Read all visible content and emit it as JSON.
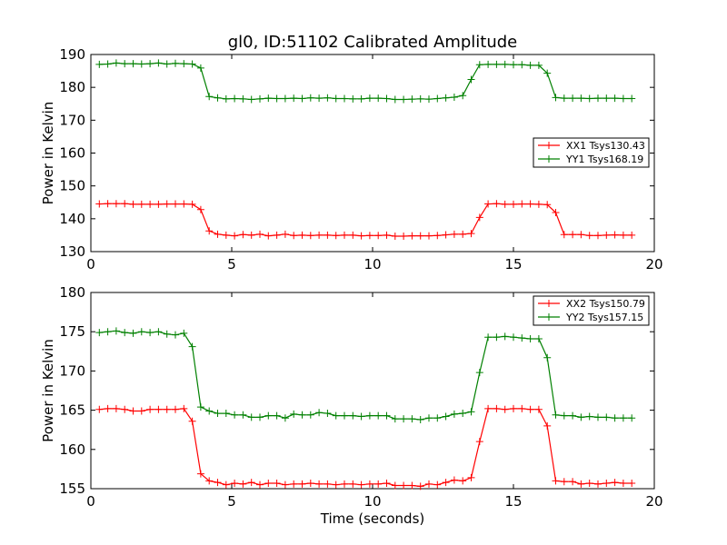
{
  "title": "gl0, ID:51102 Calibrated Amplitude",
  "chart_data": [
    {
      "type": "line",
      "title": "gl0, ID:51102 Calibrated Amplitude",
      "xlabel": "",
      "ylabel": "Power in Kelvin",
      "xlim": [
        0,
        20
      ],
      "ylim": [
        130,
        190
      ],
      "xticks": [
        0,
        5,
        10,
        15,
        20
      ],
      "yticks": [
        130,
        140,
        150,
        160,
        170,
        180,
        190
      ],
      "xtick_labels": [
        "0",
        "5",
        "10",
        "15",
        "20"
      ],
      "ytick_labels": [
        "130",
        "140",
        "150",
        "160",
        "170",
        "180",
        "190"
      ],
      "grid": false,
      "legend_position": "center-right",
      "x": [
        0.3,
        0.6,
        0.9,
        1.2,
        1.5,
        1.8,
        2.1,
        2.4,
        2.7,
        3.0,
        3.3,
        3.6,
        3.9,
        4.2,
        4.5,
        4.8,
        5.1,
        5.4,
        5.7,
        6.0,
        6.3,
        6.6,
        6.9,
        7.2,
        7.5,
        7.8,
        8.1,
        8.4,
        8.7,
        9.0,
        9.3,
        9.6,
        9.9,
        10.2,
        10.5,
        10.8,
        11.1,
        11.4,
        11.7,
        12.0,
        12.3,
        12.6,
        12.9,
        13.2,
        13.5,
        13.8,
        14.1,
        14.4,
        14.7,
        15.0,
        15.3,
        15.6,
        15.9,
        16.2,
        16.5,
        16.8,
        17.1,
        17.4,
        17.7,
        18.0,
        18.3,
        18.6,
        18.9,
        19.2
      ],
      "series": [
        {
          "name": "XX1 Tsys130.43",
          "color": "#ff0000",
          "values": [
            144.5,
            144.6,
            144.6,
            144.6,
            144.4,
            144.4,
            144.4,
            144.4,
            144.5,
            144.5,
            144.5,
            144.4,
            142.8,
            136.3,
            135.3,
            135.0,
            134.8,
            135.2,
            135.0,
            135.3,
            134.8,
            135.0,
            135.3,
            134.9,
            135.0,
            134.9,
            135.0,
            135.0,
            134.9,
            135.0,
            135.0,
            134.8,
            134.9,
            134.9,
            135.0,
            134.7,
            134.7,
            134.8,
            134.8,
            134.8,
            134.9,
            135.1,
            135.3,
            135.3,
            135.5,
            140.4,
            144.5,
            144.6,
            144.4,
            144.4,
            144.5,
            144.5,
            144.4,
            144.3,
            141.9,
            135.2,
            135.2,
            135.2,
            134.9,
            134.9,
            135.0,
            135.1,
            135.0,
            135.0
          ]
        },
        {
          "name": "YY1 Tsys168.19",
          "color": "#008000",
          "values": [
            187.0,
            187.1,
            187.4,
            187.2,
            187.2,
            187.1,
            187.2,
            187.4,
            187.1,
            187.3,
            187.2,
            187.1,
            185.9,
            177.2,
            176.8,
            176.5,
            176.6,
            176.5,
            176.3,
            176.5,
            176.7,
            176.6,
            176.6,
            176.7,
            176.6,
            176.8,
            176.7,
            176.8,
            176.6,
            176.6,
            176.5,
            176.5,
            176.7,
            176.7,
            176.6,
            176.3,
            176.3,
            176.4,
            176.5,
            176.4,
            176.6,
            176.8,
            177.0,
            177.5,
            182.4,
            186.9,
            187.0,
            187.0,
            187.0,
            186.9,
            186.9,
            186.7,
            186.7,
            184.3,
            176.9,
            176.7,
            176.7,
            176.7,
            176.6,
            176.7,
            176.7,
            176.7,
            176.6,
            176.6
          ]
        }
      ]
    },
    {
      "type": "line",
      "title": "",
      "xlabel": "Time (seconds)",
      "ylabel": "Power in Kelvin",
      "xlim": [
        0,
        20
      ],
      "ylim": [
        155,
        180
      ],
      "xticks": [
        0,
        5,
        10,
        15,
        20
      ],
      "yticks": [
        155,
        160,
        165,
        170,
        175,
        180
      ],
      "xtick_labels": [
        "0",
        "5",
        "10",
        "15",
        "20"
      ],
      "ytick_labels": [
        "155",
        "160",
        "165",
        "170",
        "175",
        "180"
      ],
      "grid": false,
      "legend_position": "top-right",
      "x": [
        0.3,
        0.6,
        0.9,
        1.2,
        1.5,
        1.8,
        2.1,
        2.4,
        2.7,
        3.0,
        3.3,
        3.6,
        3.9,
        4.2,
        4.5,
        4.8,
        5.1,
        5.4,
        5.7,
        6.0,
        6.3,
        6.6,
        6.9,
        7.2,
        7.5,
        7.8,
        8.1,
        8.4,
        8.7,
        9.0,
        9.3,
        9.6,
        9.9,
        10.2,
        10.5,
        10.8,
        11.1,
        11.4,
        11.7,
        12.0,
        12.3,
        12.6,
        12.9,
        13.2,
        13.5,
        13.8,
        14.1,
        14.4,
        14.7,
        15.0,
        15.3,
        15.6,
        15.9,
        16.2,
        16.5,
        16.8,
        17.1,
        17.4,
        17.7,
        18.0,
        18.3,
        18.6,
        18.9,
        19.2
      ],
      "series": [
        {
          "name": "XX2 Tsys150.79",
          "color": "#ff0000",
          "values": [
            165.1,
            165.2,
            165.2,
            165.1,
            164.9,
            164.9,
            165.1,
            165.1,
            165.1,
            165.1,
            165.2,
            163.6,
            156.9,
            156.0,
            155.8,
            155.5,
            155.7,
            155.6,
            155.8,
            155.5,
            155.7,
            155.7,
            155.5,
            155.6,
            155.6,
            155.7,
            155.6,
            155.6,
            155.5,
            155.6,
            155.6,
            155.5,
            155.6,
            155.6,
            155.7,
            155.4,
            155.4,
            155.4,
            155.3,
            155.6,
            155.5,
            155.8,
            156.1,
            156.0,
            156.4,
            161.0,
            165.2,
            165.2,
            165.1,
            165.2,
            165.2,
            165.1,
            165.1,
            163.0,
            156.0,
            155.9,
            155.9,
            155.6,
            155.7,
            155.6,
            155.7,
            155.8,
            155.7,
            155.7
          ]
        },
        {
          "name": "YY2 Tsys157.15",
          "color": "#008000",
          "values": [
            174.9,
            175.0,
            175.1,
            174.9,
            174.8,
            175.0,
            174.9,
            175.0,
            174.7,
            174.6,
            174.8,
            173.1,
            165.4,
            164.9,
            164.6,
            164.6,
            164.4,
            164.4,
            164.1,
            164.1,
            164.3,
            164.3,
            164.0,
            164.5,
            164.4,
            164.4,
            164.7,
            164.6,
            164.3,
            164.3,
            164.3,
            164.2,
            164.3,
            164.3,
            164.3,
            163.9,
            163.9,
            163.9,
            163.8,
            164.0,
            164.0,
            164.2,
            164.5,
            164.6,
            164.8,
            169.8,
            174.3,
            174.3,
            174.4,
            174.3,
            174.2,
            174.1,
            174.1,
            171.7,
            164.4,
            164.3,
            164.3,
            164.1,
            164.2,
            164.1,
            164.1,
            164.0,
            164.0,
            164.0
          ]
        }
      ]
    }
  ]
}
